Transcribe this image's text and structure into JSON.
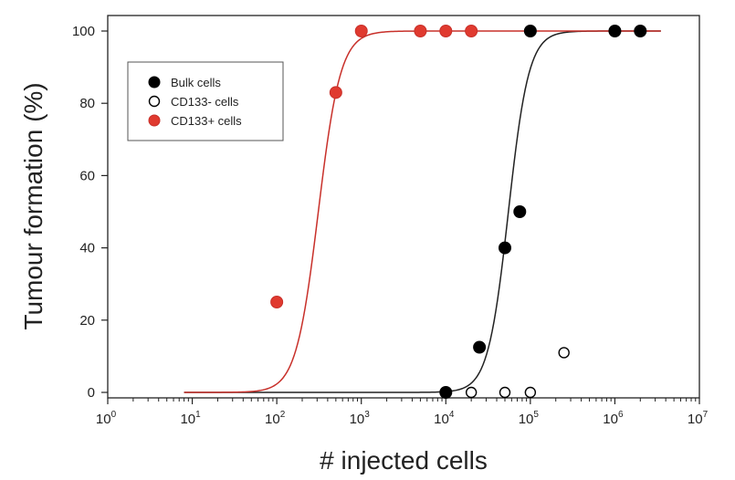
{
  "chart_data": {
    "type": "scatter",
    "title": "",
    "xlabel": "# injected cells",
    "ylabel": "Tumour formation (%)",
    "xscale": "log",
    "xlim": [
      1,
      10000000
    ],
    "ylim": [
      0,
      100
    ],
    "x_tick_base": "10",
    "x_tick_exponents": [
      "0",
      "1",
      "2",
      "3",
      "4",
      "5",
      "6",
      "7"
    ],
    "y_ticks": [
      "0",
      "20",
      "40",
      "60",
      "80",
      "100"
    ],
    "legend_position": "top-left",
    "series": [
      {
        "name": "Bulk cells",
        "marker": "filled-circle",
        "color": "#000000",
        "points": [
          {
            "x": 10000,
            "y": 0
          },
          {
            "x": 25000,
            "y": 12.5
          },
          {
            "x": 50000,
            "y": 40
          },
          {
            "x": 75000,
            "y": 50
          },
          {
            "x": 100000,
            "y": 100
          },
          {
            "x": 1000000,
            "y": 100
          },
          {
            "x": 2000000,
            "y": 100
          }
        ],
        "fit": {
          "x50": 55000,
          "slope": 3.6,
          "x_range": [
            8,
            3500000
          ],
          "color": "#222222"
        }
      },
      {
        "name": "CD133- cells",
        "marker": "open-circle",
        "color": "#000000",
        "points": [
          {
            "x": 20000,
            "y": 0
          },
          {
            "x": 50000,
            "y": 0
          },
          {
            "x": 100000,
            "y": 0
          },
          {
            "x": 250000,
            "y": 11
          }
        ]
      },
      {
        "name": "CD133+ cells",
        "marker": "filled-circle",
        "color": "#e03a2f",
        "points": [
          {
            "x": 100,
            "y": 25
          },
          {
            "x": 500,
            "y": 83
          },
          {
            "x": 1000,
            "y": 100
          },
          {
            "x": 5000,
            "y": 100
          },
          {
            "x": 10000,
            "y": 100
          },
          {
            "x": 20000,
            "y": 100
          }
        ],
        "fit": {
          "x50": 310,
          "slope": 3.3,
          "x_range": [
            8,
            3500000
          ],
          "color": "#c8302a"
        }
      }
    ]
  }
}
